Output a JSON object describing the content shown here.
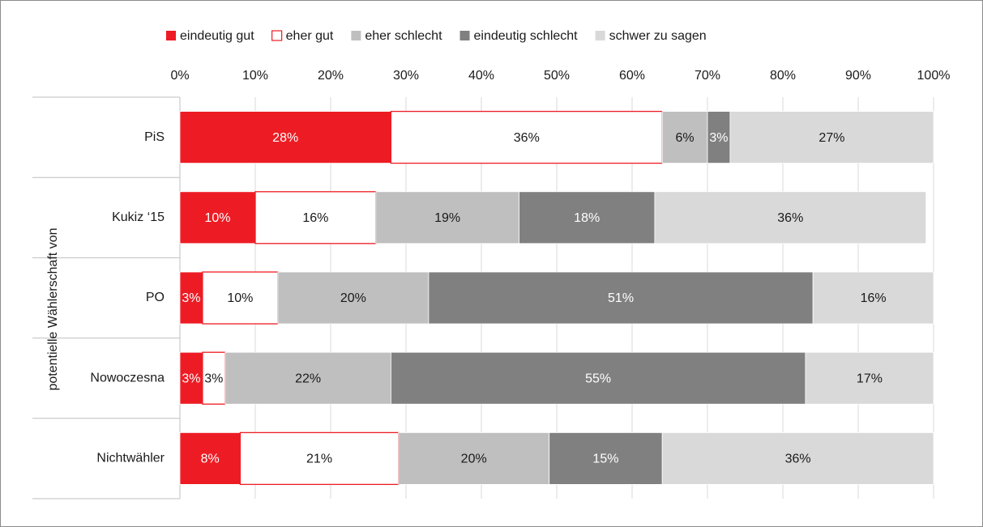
{
  "chart_data": {
    "type": "bar",
    "orientation": "horizontal",
    "stacked": true,
    "title": "",
    "xlabel": "",
    "ylabel": "potentielle Wählerschaft von",
    "xlim": [
      0,
      100
    ],
    "x_ticks": [
      "0%",
      "10%",
      "20%",
      "30%",
      "40%",
      "50%",
      "60%",
      "70%",
      "80%",
      "90%",
      "100%"
    ],
    "grid": true,
    "legend_position": "top",
    "categories": [
      "PiS",
      "Kukiz ‘15",
      "PO",
      "Nowoczesna",
      "Nichtwähler"
    ],
    "series": [
      {
        "name": "eindeutig gut",
        "color": "#ed1c24",
        "outline": false,
        "label_color": "#ffffff",
        "values": [
          28,
          10,
          3,
          3,
          8
        ],
        "labels": [
          "28%",
          "10%",
          "3%",
          "3%",
          "8%"
        ]
      },
      {
        "name": "eher gut",
        "color": "#ffffff",
        "outline": true,
        "outline_color": "#ed1c24",
        "label_color": "#1a1a1a",
        "values": [
          36,
          16,
          10,
          3,
          21
        ],
        "labels": [
          "36%",
          "16%",
          "10%",
          "3%",
          "21%"
        ]
      },
      {
        "name": "eher schlecht",
        "color": "#bfbfbf",
        "outline": false,
        "label_color": "#1a1a1a",
        "values": [
          6,
          19,
          20,
          22,
          20
        ],
        "labels": [
          "6%",
          "19%",
          "20%",
          "22%",
          "20%"
        ]
      },
      {
        "name": "eindeutig schlecht",
        "color": "#808080",
        "outline": false,
        "label_color": "#ffffff",
        "values": [
          3,
          18,
          51,
          55,
          15
        ],
        "labels": [
          "3%",
          "18%",
          "51%",
          "55%",
          "15%"
        ]
      },
      {
        "name": "schwer zu sagen",
        "color": "#d9d9d9",
        "outline": false,
        "label_color": "#1a1a1a",
        "values": [
          27,
          36,
          16,
          17,
          36
        ],
        "labels": [
          "27%",
          "36%",
          "16%",
          "17%",
          "36%"
        ]
      }
    ]
  }
}
